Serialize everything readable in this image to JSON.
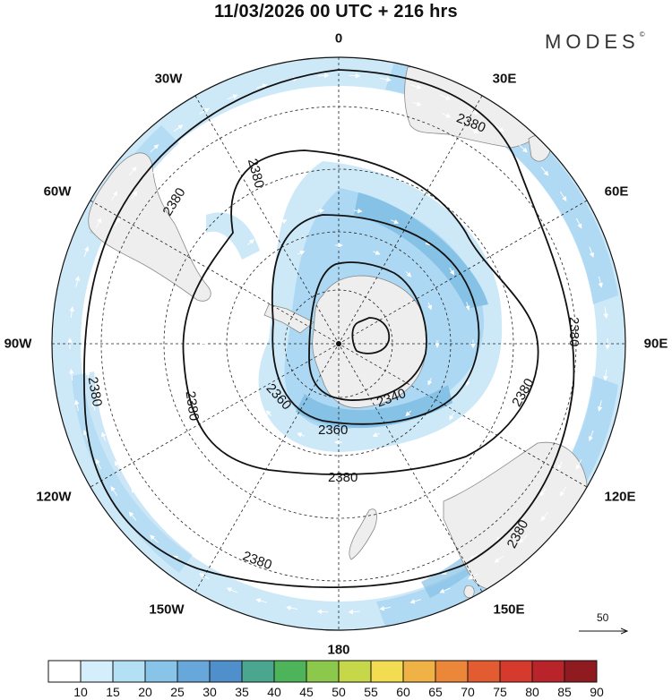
{
  "title": "11/03/2026  00 UTC  + 216 hrs",
  "brand": {
    "text": "MODES",
    "mark": "©"
  },
  "longitude_labels": {
    "lon_0": "0",
    "lon_30e": "30E",
    "lon_60e": "60E",
    "lon_90e": "90E",
    "lon_120e": "120E",
    "lon_150e": "150E",
    "lon_180": "180",
    "lon_150w": "150W",
    "lon_120w": "120W",
    "lon_90w": "90W",
    "lon_60w": "60W",
    "lon_30w": "30W"
  },
  "contours": {
    "c2380_a": "2380",
    "c2380_b": "2380",
    "c2380_c": "2380",
    "c2380_d": "2380",
    "c2380_e": "2380",
    "c2380_f": "2380",
    "c2380_g": "2380",
    "c2380_h": "2380",
    "c2380_i": "2380",
    "c2360_a": "2360",
    "c2360_b": "2360",
    "c2340": "2340"
  },
  "reference_vector": {
    "label": "50"
  },
  "colorbar": {
    "labels": [
      "10",
      "15",
      "20",
      "25",
      "30",
      "35",
      "40",
      "45",
      "50",
      "55",
      "60",
      "65",
      "70",
      "75",
      "80",
      "85",
      "90"
    ],
    "colors": [
      "#ffffff",
      "#d4eefb",
      "#b4e0f6",
      "#88c3e8",
      "#67a7da",
      "#4f8fcb",
      "#4aa68f",
      "#4db45a",
      "#8cc84b",
      "#c6d84a",
      "#f2dc52",
      "#f0b145",
      "#ec8638",
      "#e35b30",
      "#d63a2c",
      "#b8242a",
      "#8f1a1f"
    ]
  },
  "palette": {
    "land": "#eeeeee",
    "land_edge": "#8a8a8a",
    "shade_light": "#cde9f8",
    "shade_mid": "#a9d6f2",
    "shade_dark": "#86c1e6"
  }
}
